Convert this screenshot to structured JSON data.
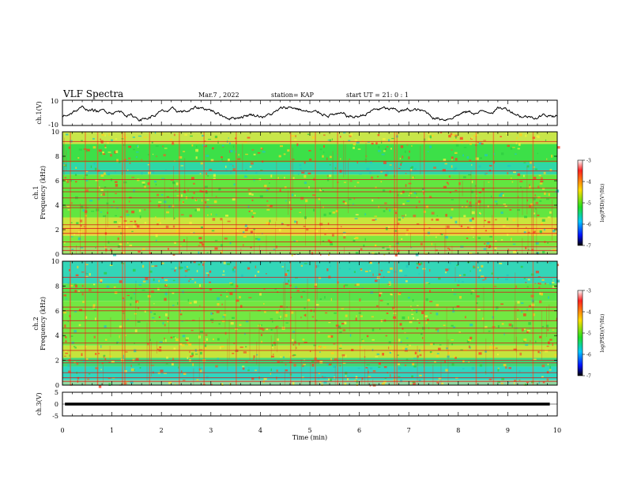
{
  "header": {
    "title": "VLF Spectra",
    "date": "Mar.7 , 2022",
    "station": "station= KAP",
    "start_time": "start UT =  21: 0  : 1"
  },
  "chart_data": [
    {
      "type": "line",
      "name": "ch1-waveform-panel",
      "ylabel": "ch.1(V)",
      "ylim": [
        -10,
        10
      ],
      "yticks": [
        "10",
        "-10"
      ],
      "xlim": [
        0,
        10
      ]
    },
    {
      "type": "heatmap",
      "name": "ch1-spectrogram",
      "ylabel_top": "ch.1",
      "ylabel": "Frequency (kHz)",
      "ylim": [
        0,
        10
      ],
      "yticks": [
        "0",
        "2",
        "4",
        "6",
        "8",
        "10"
      ],
      "xlim": [
        0,
        10
      ],
      "colorbar": {
        "label": "log(PSD)(V²/Hz)",
        "range": [
          -7,
          -3
        ],
        "ticks": [
          "-3",
          "-4",
          "-5",
          "-6",
          "-7"
        ]
      },
      "background_bands": [
        {
          "from": 9.0,
          "to": 10.0,
          "color": "#c8e64a"
        },
        {
          "from": 7.0,
          "to": 9.0,
          "color": "#3ce048"
        },
        {
          "from": 6.5,
          "to": 7.5,
          "color": "#2fd7a8"
        },
        {
          "from": 3.0,
          "to": 6.5,
          "color": "#62e640"
        },
        {
          "from": 2.3,
          "to": 3.0,
          "color": "#c9e63c"
        },
        {
          "from": 1.5,
          "to": 2.3,
          "color": "#e6d238"
        },
        {
          "from": 0.6,
          "to": 1.5,
          "color": "#7ee83e"
        },
        {
          "from": 0.0,
          "to": 0.6,
          "color": "#9fdf6c"
        }
      ],
      "harmonic_lines_khz": [
        0.3,
        0.6,
        1.0,
        1.7,
        2.1,
        2.4,
        3.8,
        4.0,
        4.6,
        5.1,
        5.4,
        6.1,
        6.8,
        7.6,
        9.2
      ],
      "vertical_bursts_min": [
        0.15,
        0.45,
        0.7,
        1.2,
        1.25,
        1.75,
        2.35,
        2.85,
        3.5,
        4.6,
        5.1,
        5.55,
        6.7,
        6.75,
        7.3,
        8.35,
        8.7,
        9.5
      ]
    },
    {
      "type": "heatmap",
      "name": "ch2-spectrogram",
      "ylabel_top": "ch.2",
      "ylabel": "Frequency (kHz)",
      "ylim": [
        0,
        10
      ],
      "yticks": [
        "0",
        "2",
        "4",
        "6",
        "8",
        "10"
      ],
      "xlim": [
        0,
        10
      ],
      "colorbar": {
        "label": "log(PSD)(V²/Hz)",
        "range": [
          -7,
          -3
        ],
        "ticks": [
          "-3",
          "-4",
          "-5",
          "-6",
          "-7"
        ]
      },
      "background_bands": [
        {
          "from": 8.2,
          "to": 10.0,
          "color": "#33d6b8"
        },
        {
          "from": 6.8,
          "to": 8.2,
          "color": "#5ae24a"
        },
        {
          "from": 3.2,
          "to": 6.8,
          "color": "#72e842"
        },
        {
          "from": 2.2,
          "to": 3.2,
          "color": "#c5e43c"
        },
        {
          "from": 1.5,
          "to": 2.2,
          "color": "#3ed878"
        },
        {
          "from": 0.4,
          "to": 1.5,
          "color": "#30d6c0"
        },
        {
          "from": 0.0,
          "to": 0.4,
          "color": "#8fd8a0"
        }
      ],
      "harmonic_lines_khz": [
        0.3,
        0.6,
        1.0,
        1.8,
        2.0,
        2.8,
        3.4,
        4.2,
        4.6,
        5.2,
        6.0,
        6.3,
        7.5,
        7.8,
        8.7
      ],
      "vertical_bursts_min": [
        0.15,
        0.45,
        0.7,
        1.2,
        1.25,
        1.75,
        2.35,
        2.85,
        3.5,
        4.6,
        5.1,
        5.55,
        6.7,
        6.75,
        7.3,
        8.35,
        8.7,
        9.5
      ]
    },
    {
      "type": "line",
      "name": "ch3-waveform-panel",
      "ylabel": "ch.3(V)",
      "ylim": [
        -5,
        5
      ],
      "yticks": [
        "5",
        "0",
        "-5"
      ],
      "xlim": [
        0,
        10
      ],
      "xlabel": "Time (min)",
      "xticks": [
        "0",
        "1",
        "2",
        "3",
        "4",
        "5",
        "6",
        "7",
        "8",
        "9",
        "10"
      ],
      "signal_level": 0,
      "signal_amplitude": 0.6
    }
  ]
}
